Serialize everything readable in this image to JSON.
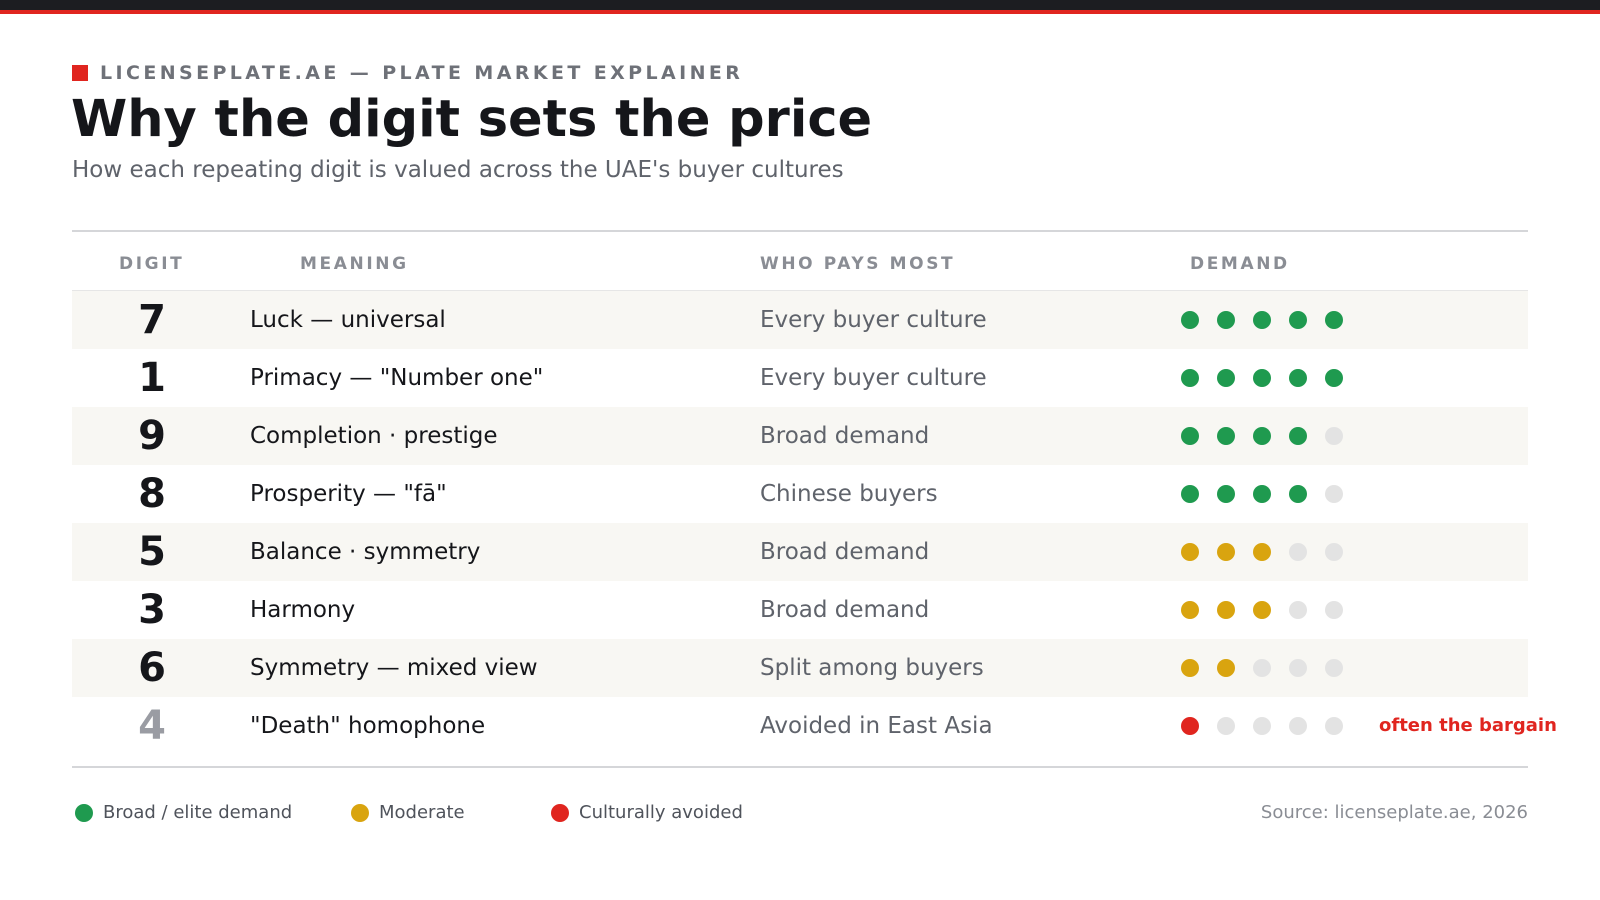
{
  "header": {
    "eyebrow": "LICENSEPLATE.AE — PLATE MARKET EXPLAINER",
    "title": "Why the digit sets the price",
    "subtitle": "How each repeating digit is valued across the UAE's buyer cultures"
  },
  "colors": {
    "brand_red": "#e0251f",
    "high": "#1f9a4f",
    "moderate": "#d9a40f",
    "avoided": "#e0251f",
    "empty": "#e3e3e3"
  },
  "chart_data": {
    "type": "table",
    "columns": [
      "DIGIT",
      "MEANING",
      "WHO PAYS MOST",
      "DEMAND"
    ],
    "demand_scale_max": 5,
    "rows": [
      {
        "digit": "7",
        "meaning": "Luck — universal",
        "who_pays_most": "Every buyer culture",
        "demand": 5,
        "level": "high",
        "note": ""
      },
      {
        "digit": "1",
        "meaning": "Primacy — \"Number one\"",
        "who_pays_most": "Every buyer culture",
        "demand": 5,
        "level": "high",
        "note": ""
      },
      {
        "digit": "9",
        "meaning": "Completion · prestige",
        "who_pays_most": "Broad demand",
        "demand": 4,
        "level": "high",
        "note": ""
      },
      {
        "digit": "8",
        "meaning": "Prosperity — \"fā\"",
        "who_pays_most": "Chinese buyers",
        "demand": 4,
        "level": "high",
        "note": ""
      },
      {
        "digit": "5",
        "meaning": "Balance · symmetry",
        "who_pays_most": "Broad demand",
        "demand": 3,
        "level": "moderate",
        "note": ""
      },
      {
        "digit": "3",
        "meaning": "Harmony",
        "who_pays_most": "Broad demand",
        "demand": 3,
        "level": "moderate",
        "note": ""
      },
      {
        "digit": "6",
        "meaning": "Symmetry — mixed view",
        "who_pays_most": "Split among buyers",
        "demand": 2,
        "level": "moderate",
        "note": ""
      },
      {
        "digit": "4",
        "meaning": "\"Death\" homophone",
        "who_pays_most": "Avoided in East Asia",
        "demand": 1,
        "level": "avoided",
        "note": "often the bargain"
      }
    ],
    "legend": [
      {
        "label": "Broad / elite demand",
        "level": "high"
      },
      {
        "label": "Moderate",
        "level": "moderate"
      },
      {
        "label": "Culturally avoided",
        "level": "avoided"
      }
    ]
  },
  "footer": {
    "source": "Source: licenseplate.ae, 2026"
  }
}
